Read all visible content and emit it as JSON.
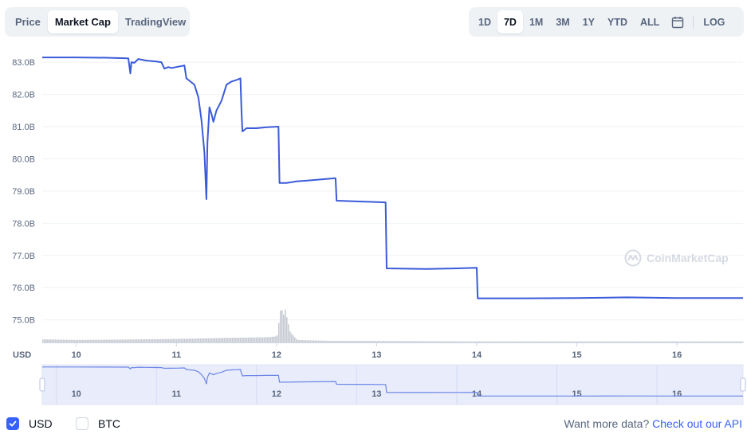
{
  "view_tabs": [
    "Price",
    "Market Cap",
    "TradingView"
  ],
  "view_active": "Market Cap",
  "range_tabs": [
    "1D",
    "7D",
    "1M",
    "3M",
    "1Y",
    "YTD",
    "ALL"
  ],
  "range_active": "7D",
  "log_label": "LOG",
  "colors": {
    "line": "#3b5bd9",
    "volume": "#c7cbd3",
    "navigator_fill": "#e8ecfb",
    "accent": "#3861fb"
  },
  "watermark": "CoinMarketCap",
  "footer": {
    "usd_label": "USD",
    "btc_label": "BTC",
    "api_prefix": "Want more data?",
    "api_link": "Check out our API"
  },
  "chart_data": {
    "type": "line",
    "ylim": [
      74.3,
      83.3
    ],
    "yticks": [
      "83.0B",
      "82.0B",
      "81.0B",
      "80.0B",
      "79.0B",
      "78.0B",
      "77.0B",
      "76.0B",
      "75.0B"
    ],
    "ytick_values": [
      83,
      82,
      81,
      80,
      79,
      78,
      77,
      76,
      75
    ],
    "yaxis_unit": "USD",
    "xlim": [
      9.66,
      16.66
    ],
    "xticks": [
      "10",
      "11",
      "12",
      "13",
      "14",
      "15",
      "16"
    ],
    "xtick_values": [
      10,
      11,
      12,
      13,
      14,
      15,
      16
    ],
    "series": [
      {
        "x": [
          9.66,
          10.0,
          10.3,
          10.52,
          10.54,
          10.55,
          10.58,
          10.62,
          10.7,
          10.8,
          10.85,
          10.88,
          10.92,
          10.95,
          11.0,
          11.08,
          11.1,
          11.12,
          11.18,
          11.22,
          11.25,
          11.28,
          11.3,
          11.31,
          11.33,
          11.35,
          11.37,
          11.4,
          11.45,
          11.5,
          11.55,
          11.6,
          11.64,
          11.65,
          11.66,
          11.7,
          11.8,
          11.9,
          12.02,
          12.03,
          12.1,
          12.2,
          12.4,
          12.59,
          12.6,
          12.8,
          13.09,
          13.1,
          13.5,
          13.8,
          14.0,
          14.01,
          14.5,
          15.0,
          15.5,
          16.0,
          16.66
        ],
        "values": [
          83.15,
          83.15,
          83.14,
          83.12,
          82.65,
          83.0,
          82.98,
          83.1,
          83.05,
          83.02,
          83.0,
          82.8,
          82.85,
          82.82,
          82.85,
          82.9,
          82.5,
          82.45,
          82.3,
          81.9,
          81.2,
          80.2,
          78.75,
          80.5,
          81.6,
          81.4,
          81.15,
          81.5,
          81.8,
          82.3,
          82.4,
          82.45,
          82.5,
          81.5,
          80.85,
          80.95,
          80.95,
          80.98,
          81.0,
          79.25,
          79.25,
          79.3,
          79.35,
          79.4,
          78.7,
          78.68,
          78.65,
          76.6,
          76.58,
          76.6,
          76.62,
          75.67,
          75.67,
          75.68,
          75.7,
          75.68,
          75.68
        ]
      }
    ],
    "volume": {
      "x": [
        9.66,
        10.0,
        10.5,
        11.0,
        11.3,
        11.5,
        11.9,
        12.0,
        12.04,
        12.06,
        12.08,
        12.1,
        12.13,
        12.2,
        12.5,
        13.0,
        13.5,
        14.0,
        14.5,
        15.0,
        15.5,
        16.0,
        16.66
      ],
      "values": [
        0.15,
        0.12,
        0.14,
        0.17,
        0.2,
        0.22,
        0.25,
        0.3,
        1.8,
        1.25,
        1.6,
        1.15,
        0.5,
        0.12,
        0.08,
        0.07,
        0.06,
        0.05,
        0.05,
        0.05,
        0.05,
        0.05,
        0.05
      ]
    },
    "grid": true,
    "legend": "none"
  }
}
